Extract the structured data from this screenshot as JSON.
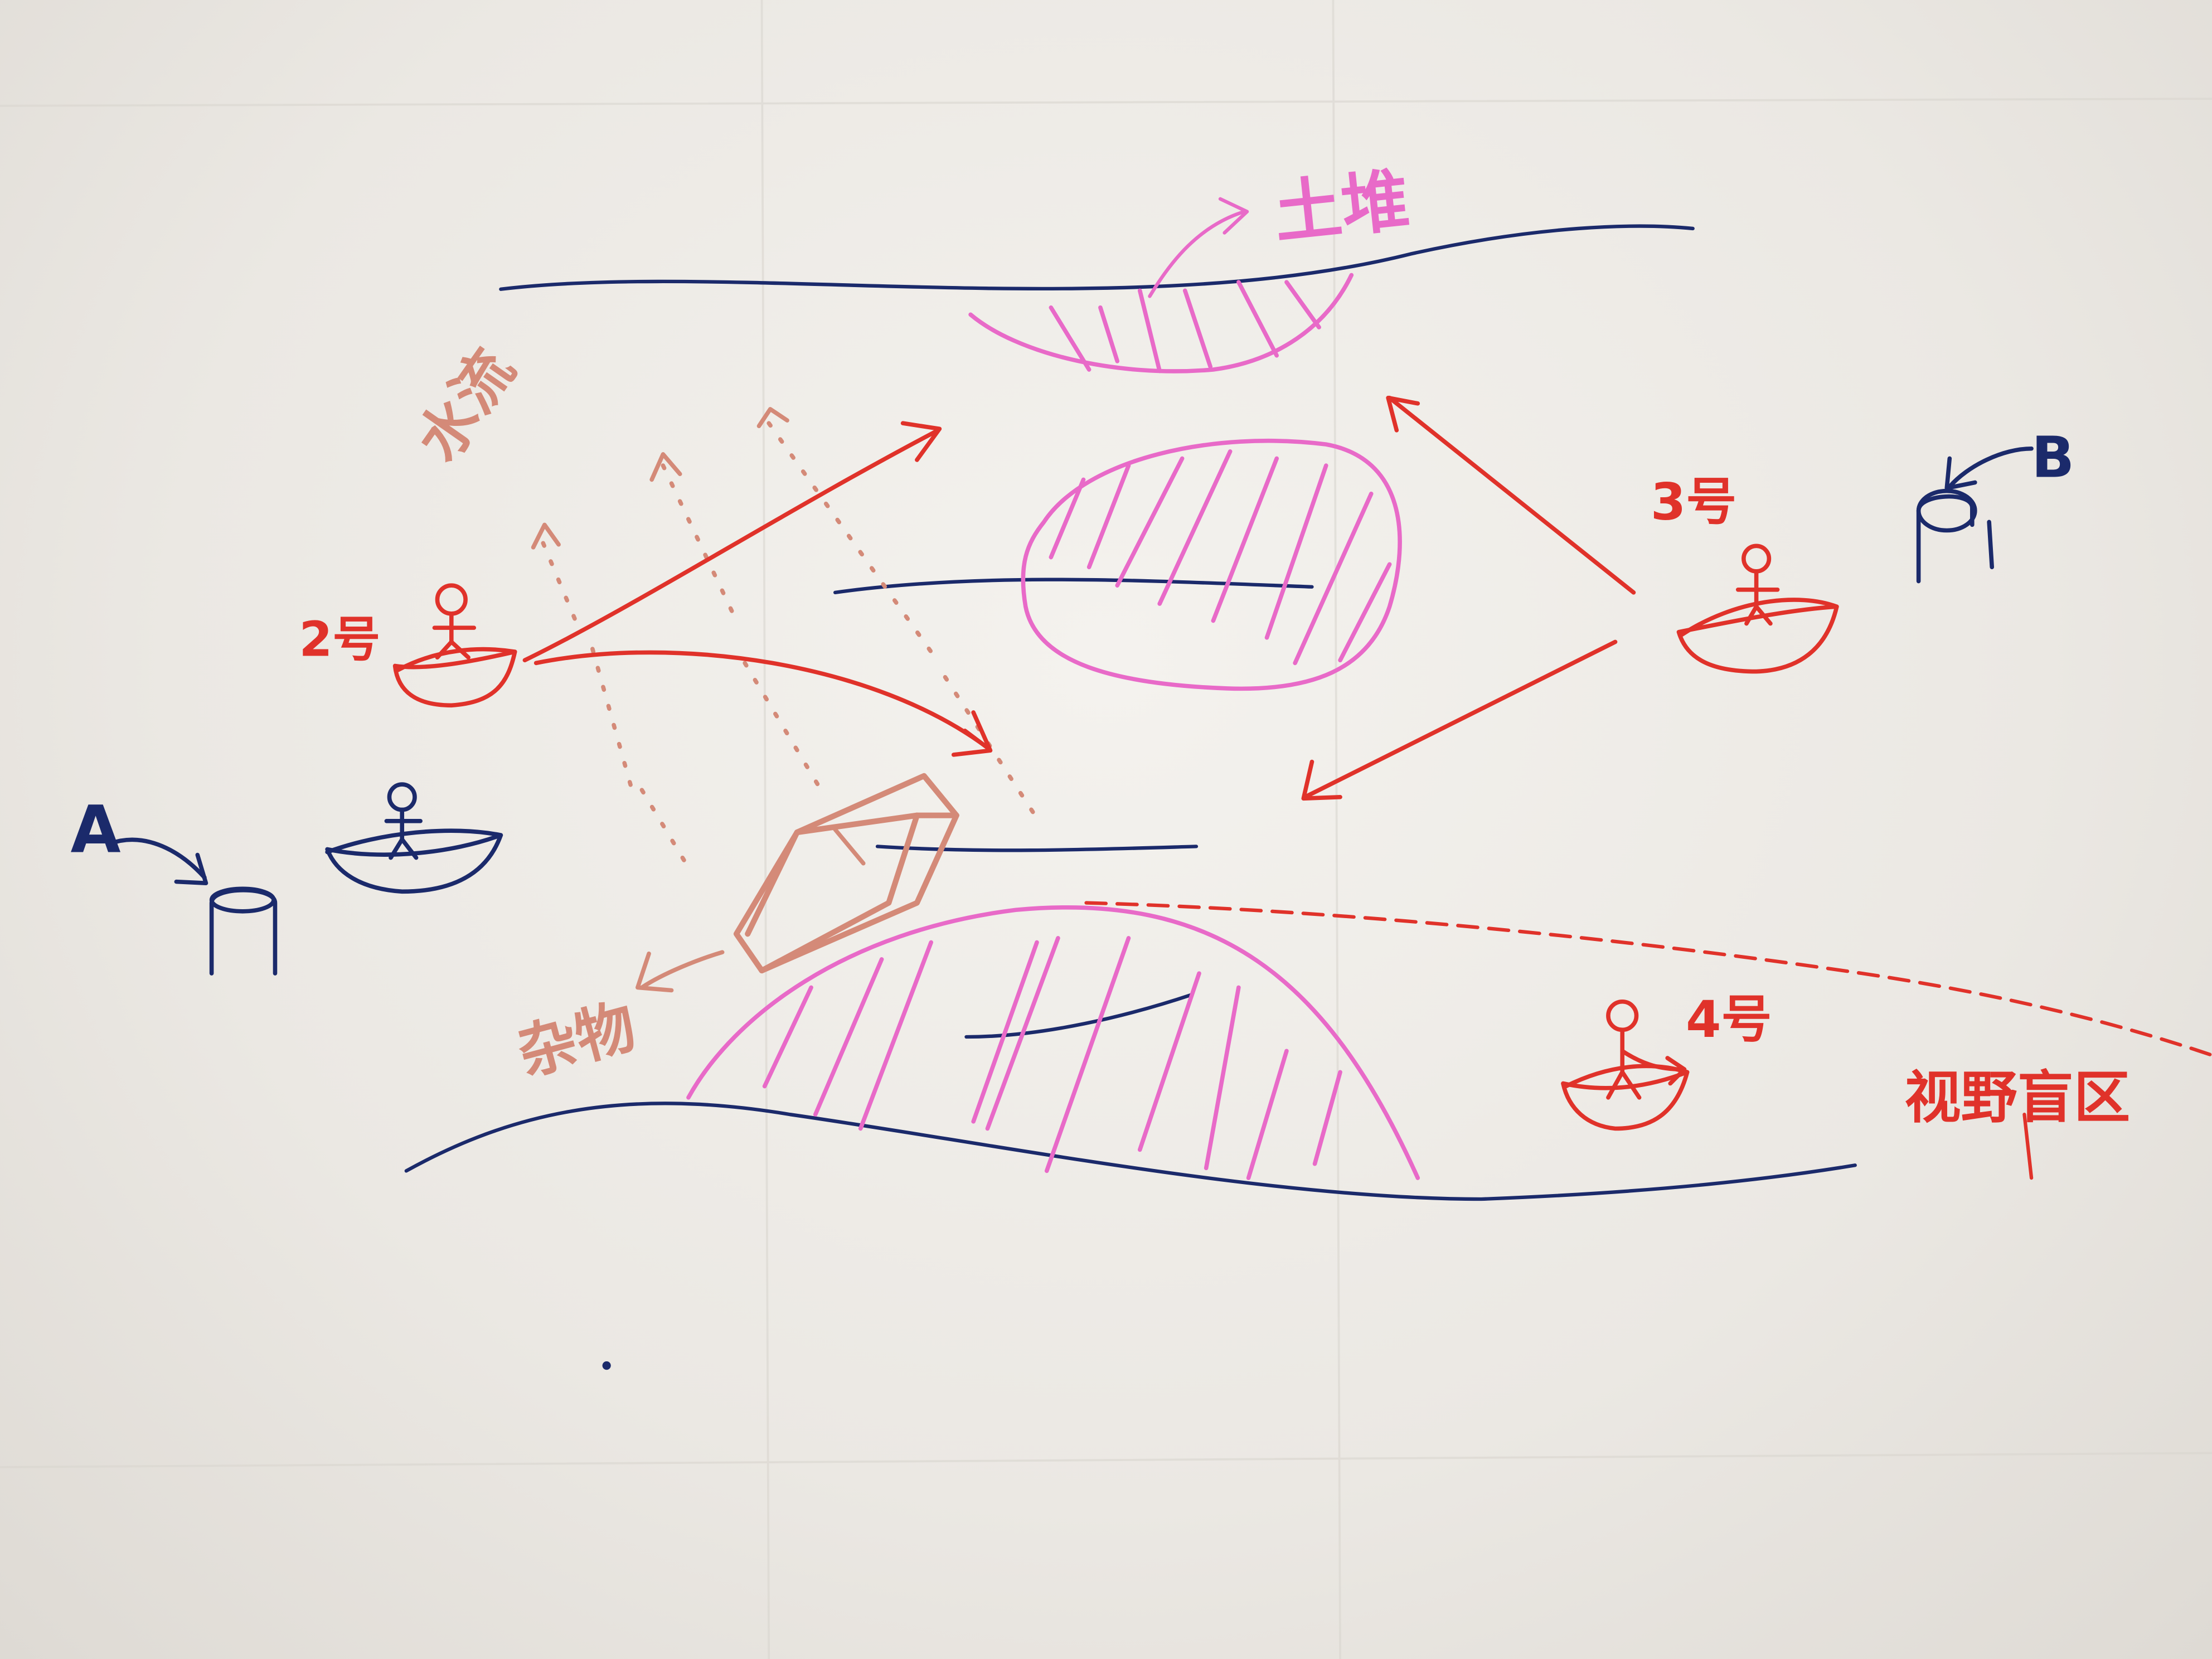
{
  "labels": {
    "earth_mound": "土堆",
    "water_flow": "水流",
    "boat_2": "2号",
    "boat_3": "3号",
    "boat_4": "4号",
    "point_a": "A",
    "point_b": "B",
    "debris": "杂物",
    "blind_zone": "视野盲区"
  },
  "colors": {
    "blue_ink": "#1b2a6b",
    "red_ink": "#e0322a",
    "pink_ink": "#e86ac8",
    "brown_ink": "#d48a78",
    "paper": "#efece7"
  }
}
